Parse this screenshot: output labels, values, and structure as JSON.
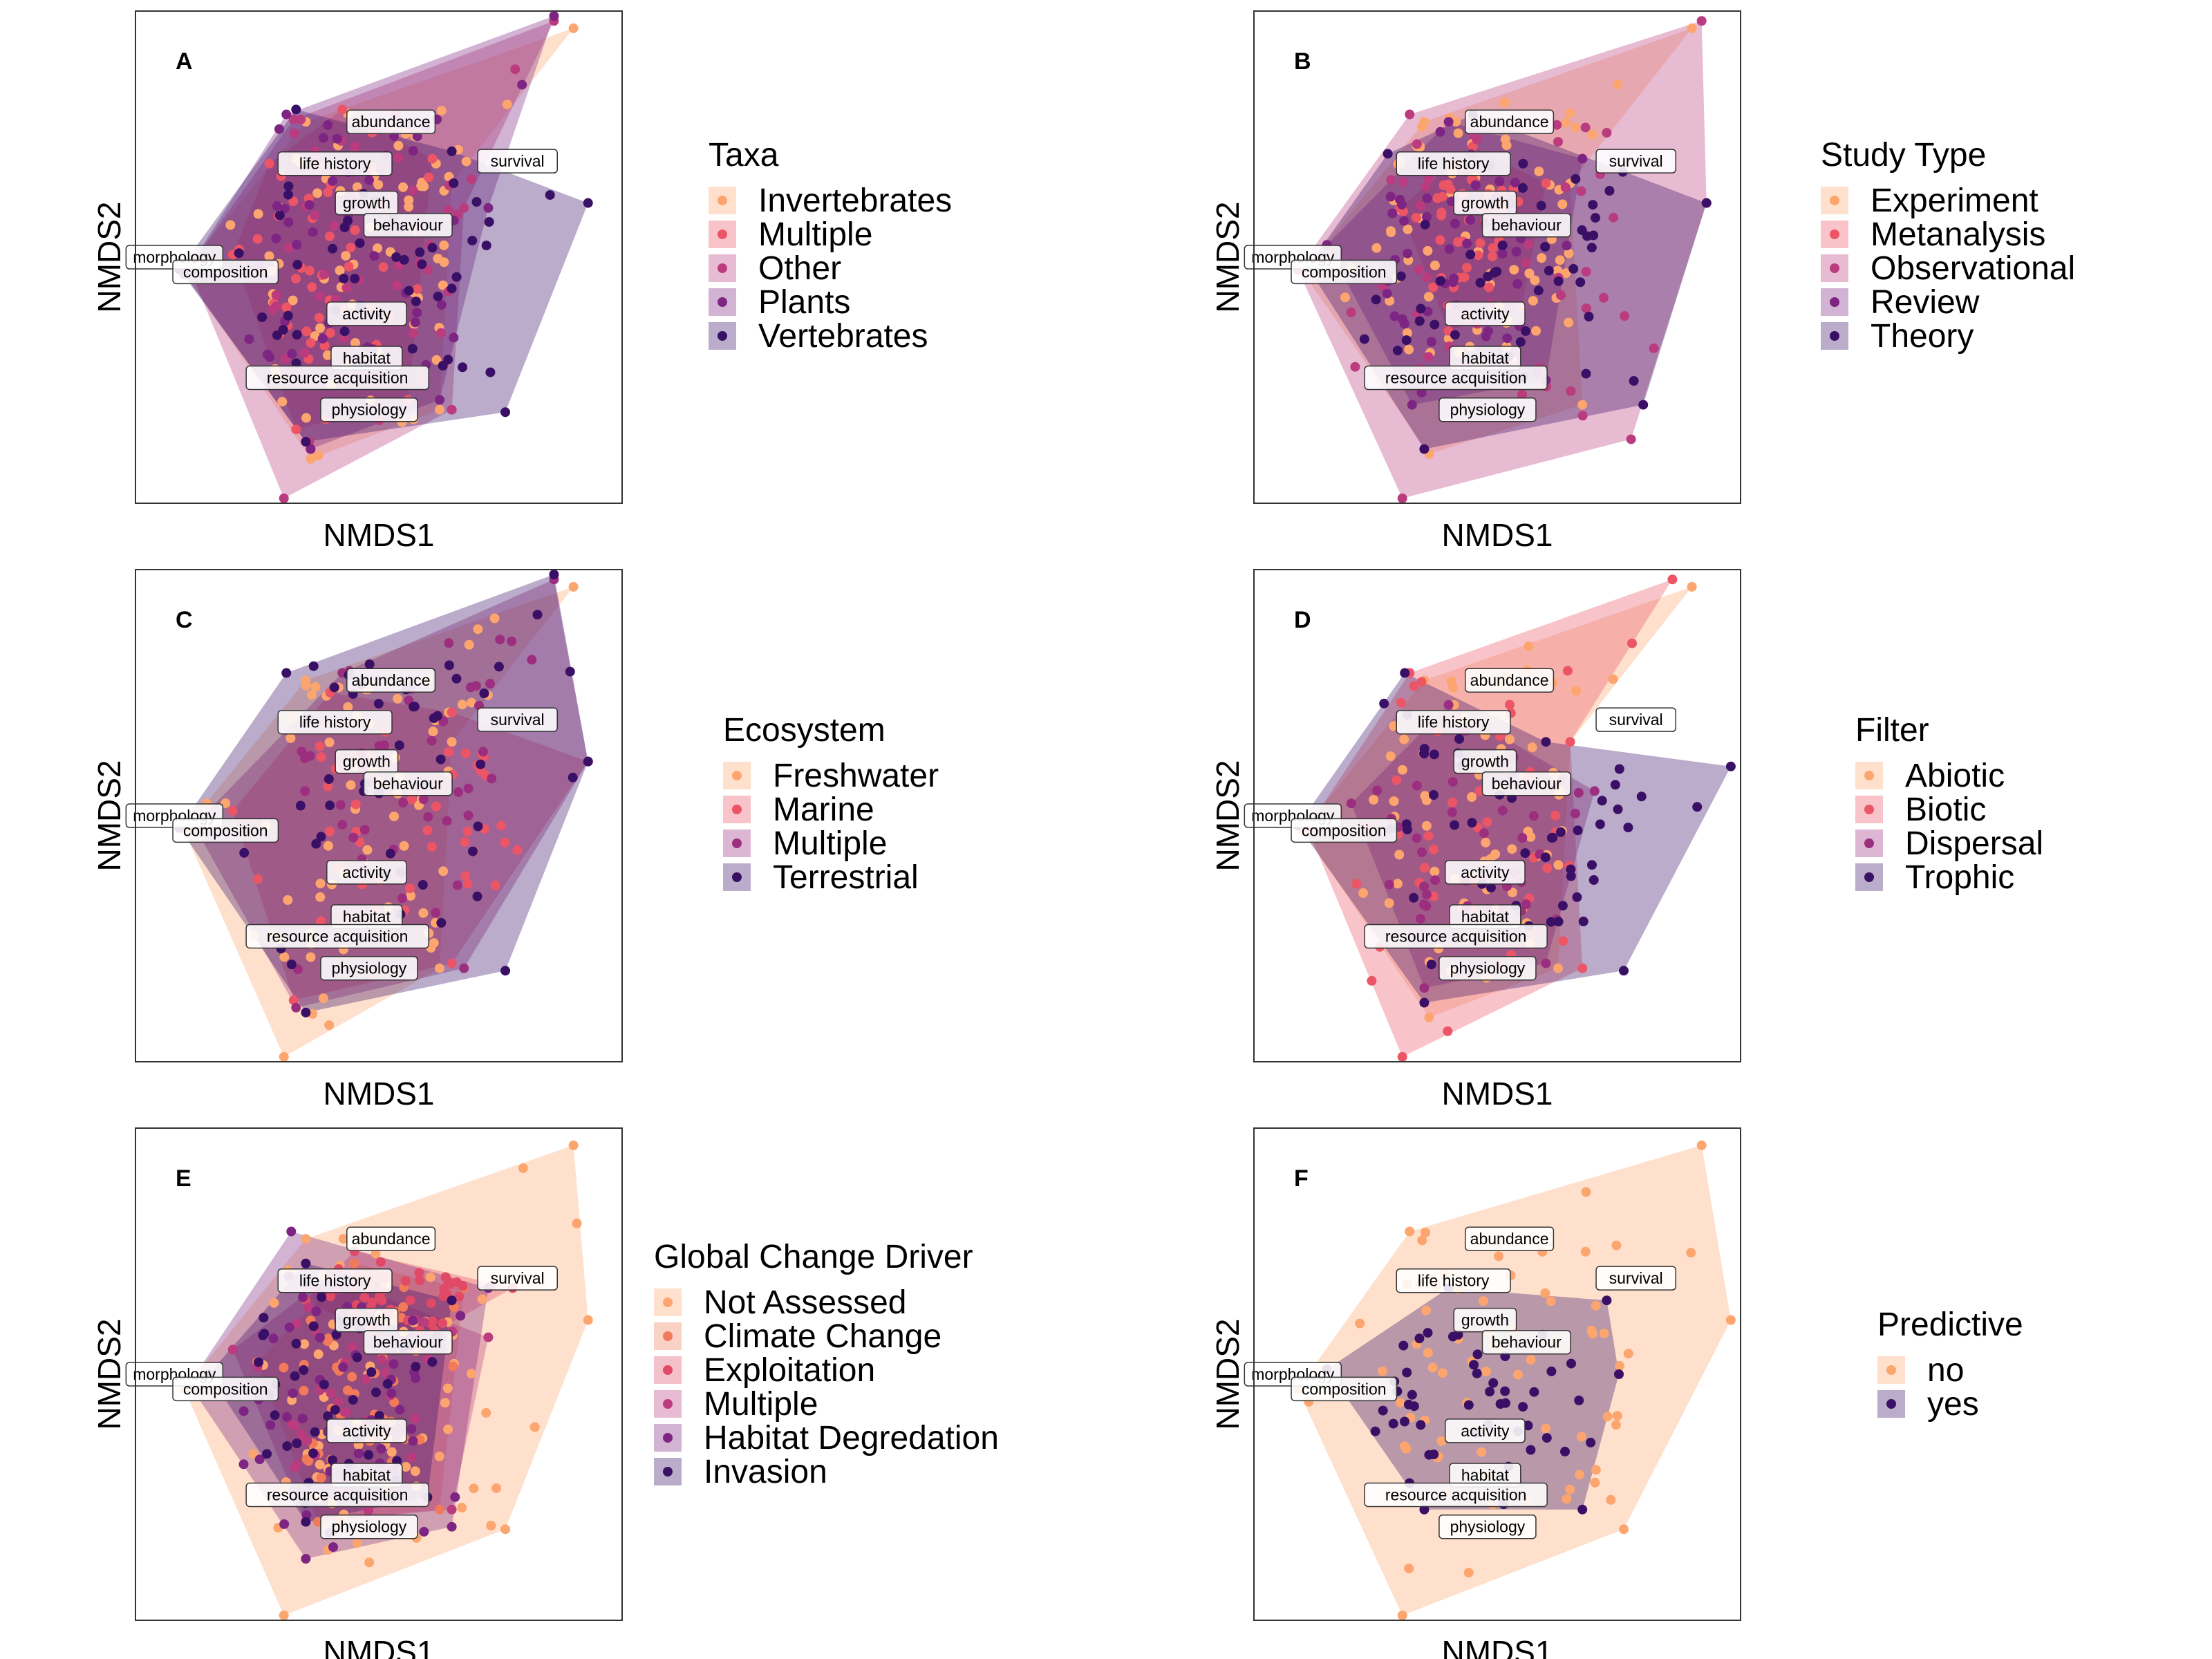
{
  "figure": {
    "x_axis_label": "NMDS1",
    "y_axis_label": "NMDS2",
    "vector_labels": [
      "abundance",
      "life history",
      "survival",
      "growth",
      "behaviour",
      "morphology",
      "composition",
      "activity",
      "habitat",
      "resource acquisition",
      "physiology"
    ]
  },
  "chart_data": [
    {
      "panel": "A",
      "type": "scatter",
      "xlabel": "NMDS1",
      "ylabel": "NMDS2",
      "xlim": [
        -1.0,
        1.0
      ],
      "ylim": [
        -1.0,
        1.0
      ],
      "grid": false,
      "legend_placement": "right",
      "legend_title": "Taxa",
      "groups": [
        {
          "name": "Invertebrates",
          "color": "#FCA56E",
          "hull": [
            [
              -0.8,
              -0.06
            ],
            [
              -0.28,
              -0.82
            ],
            [
              0.25,
              -0.62
            ],
            [
              0.3,
              0.3
            ],
            [
              0.8,
              0.93
            ],
            [
              -0.3,
              0.55
            ]
          ]
        },
        {
          "name": "Multiple",
          "color": "#EC5566",
          "hull": [
            [
              -0.6,
              0.01
            ],
            [
              -0.34,
              -0.7
            ],
            [
              0.12,
              -0.58
            ],
            [
              0.22,
              0.4
            ],
            [
              -0.15,
              0.6
            ],
            [
              -0.45,
              0.38
            ]
          ]
        },
        {
          "name": "Other",
          "color": "#BA3B7E",
          "hull": [
            [
              -0.78,
              -0.04
            ],
            [
              -0.39,
              -0.98
            ],
            [
              0.3,
              -0.62
            ],
            [
              0.35,
              0.2
            ],
            [
              0.72,
              0.96
            ],
            [
              -0.35,
              0.56
            ]
          ]
        },
        {
          "name": "Plants",
          "color": "#7E2482",
          "hull": [
            [
              -0.8,
              -0.07
            ],
            [
              -0.28,
              -0.78
            ],
            [
              0.25,
              -0.58
            ],
            [
              0.45,
              0.2
            ],
            [
              0.72,
              0.98
            ],
            [
              -0.38,
              0.58
            ]
          ]
        },
        {
          "name": "Vertebrates",
          "color": "#3A1066",
          "hull": [
            [
              -0.82,
              -0.05
            ],
            [
              -0.3,
              -0.75
            ],
            [
              0.52,
              -0.63
            ],
            [
              0.86,
              0.22
            ],
            [
              0.3,
              0.43
            ],
            [
              -0.34,
              0.6
            ]
          ]
        }
      ]
    },
    {
      "panel": "B",
      "type": "scatter",
      "xlabel": "NMDS1",
      "ylabel": "NMDS2",
      "xlim": [
        -1.0,
        1.0
      ],
      "ylim": [
        -1.0,
        1.0
      ],
      "grid": false,
      "legend_placement": "right",
      "legend_title": "Study Type",
      "groups": [
        {
          "name": "Experiment",
          "color": "#FCA56E",
          "hull": [
            [
              -0.8,
              -0.06
            ],
            [
              -0.28,
              -0.8
            ],
            [
              0.35,
              -0.6
            ],
            [
              0.3,
              0.3
            ],
            [
              0.8,
              0.93
            ],
            [
              -0.3,
              0.55
            ]
          ]
        },
        {
          "name": "Metanalysis",
          "color": "#EC5566",
          "hull": [
            [
              -0.4,
              0.2
            ],
            [
              -0.2,
              -0.3
            ],
            [
              0.1,
              -0.2
            ],
            [
              0.2,
              0.3
            ],
            [
              -0.1,
              0.45
            ]
          ]
        },
        {
          "name": "Observational",
          "color": "#BA3B7E",
          "hull": [
            [
              -0.82,
              -0.05
            ],
            [
              -0.39,
              -0.98
            ],
            [
              0.55,
              -0.74
            ],
            [
              0.86,
              0.22
            ],
            [
              0.84,
              0.96
            ],
            [
              -0.36,
              0.58
            ]
          ]
        },
        {
          "name": "Review",
          "color": "#7E2482",
          "hull": [
            [
              -0.7,
              0.05
            ],
            [
              -0.35,
              -0.6
            ],
            [
              0.2,
              -0.5
            ],
            [
              0.35,
              0.4
            ],
            [
              -0.2,
              0.55
            ]
          ]
        },
        {
          "name": "Theory",
          "color": "#3A1066",
          "hull": [
            [
              -0.78,
              -0.04
            ],
            [
              -0.3,
              -0.78
            ],
            [
              0.6,
              -0.6
            ],
            [
              0.86,
              0.22
            ],
            [
              -0.1,
              0.58
            ],
            [
              -0.45,
              0.42
            ]
          ]
        }
      ]
    },
    {
      "panel": "C",
      "type": "scatter",
      "xlabel": "NMDS1",
      "ylabel": "NMDS2",
      "xlim": [
        -1.0,
        1.0
      ],
      "ylim": [
        -1.0,
        1.0
      ],
      "grid": false,
      "legend_placement": "right",
      "legend_title": "Ecosystem",
      "groups": [
        {
          "name": "Freshwater",
          "color": "#FCA56E",
          "hull": [
            [
              -0.8,
              -0.06
            ],
            [
              -0.39,
              -0.98
            ],
            [
              0.25,
              -0.62
            ],
            [
              0.3,
              0.3
            ],
            [
              0.8,
              0.93
            ],
            [
              -0.3,
              0.55
            ]
          ]
        },
        {
          "name": "Marine",
          "color": "#EC5566",
          "hull": [
            [
              -0.6,
              0.02
            ],
            [
              -0.35,
              -0.75
            ],
            [
              0.3,
              -0.6
            ],
            [
              0.86,
              0.22
            ],
            [
              0.3,
              0.42
            ],
            [
              -0.2,
              0.5
            ]
          ]
        },
        {
          "name": "Multiple",
          "color": "#9C2E7F",
          "hull": [
            [
              -0.76,
              -0.04
            ],
            [
              -0.34,
              -0.78
            ],
            [
              0.35,
              -0.62
            ],
            [
              0.86,
              0.22
            ],
            [
              0.72,
              0.96
            ],
            [
              -0.15,
              0.58
            ]
          ]
        },
        {
          "name": "Terrestrial",
          "color": "#3A1066",
          "hull": [
            [
              -0.82,
              -0.05
            ],
            [
              -0.3,
              -0.8
            ],
            [
              0.52,
              -0.63
            ],
            [
              0.86,
              0.22
            ],
            [
              0.72,
              0.98
            ],
            [
              -0.38,
              0.58
            ]
          ]
        }
      ]
    },
    {
      "panel": "D",
      "type": "scatter",
      "xlabel": "NMDS1",
      "ylabel": "NMDS2",
      "xlim": [
        -1.0,
        1.0
      ],
      "ylim": [
        -1.0,
        1.0
      ],
      "grid": false,
      "legend_placement": "right",
      "legend_title": "Filter",
      "groups": [
        {
          "name": "Abiotic",
          "color": "#FCA56E",
          "hull": [
            [
              -0.8,
              -0.06
            ],
            [
              -0.28,
              -0.82
            ],
            [
              0.25,
              -0.62
            ],
            [
              0.3,
              0.3
            ],
            [
              0.8,
              0.93
            ],
            [
              -0.3,
              0.55
            ]
          ]
        },
        {
          "name": "Biotic",
          "color": "#EC5566",
          "hull": [
            [
              -0.78,
              -0.05
            ],
            [
              -0.39,
              -0.98
            ],
            [
              0.35,
              -0.62
            ],
            [
              0.3,
              0.3
            ],
            [
              0.72,
              0.96
            ],
            [
              -0.36,
              0.58
            ]
          ]
        },
        {
          "name": "Dispersal",
          "color": "#9C2E7F",
          "hull": [
            [
              -0.6,
              0.05
            ],
            [
              -0.3,
              -0.7
            ],
            [
              0.2,
              -0.6
            ],
            [
              0.4,
              0.1
            ],
            [
              -0.2,
              0.45
            ]
          ]
        },
        {
          "name": "Trophic",
          "color": "#3A1066",
          "hull": [
            [
              -0.82,
              -0.04
            ],
            [
              -0.3,
              -0.76
            ],
            [
              0.52,
              -0.63
            ],
            [
              0.96,
              0.2
            ],
            [
              0.2,
              0.3
            ],
            [
              -0.38,
              0.58
            ]
          ]
        }
      ]
    },
    {
      "panel": "E",
      "type": "scatter",
      "xlabel": "NMDS1",
      "ylabel": "NMDS2",
      "xlim": [
        -1.0,
        1.0
      ],
      "ylim": [
        -1.0,
        1.0
      ],
      "grid": false,
      "legend_placement": "right",
      "legend_title": "Global Change Driver",
      "groups": [
        {
          "name": "Not Assessed",
          "color": "#FCA56E",
          "hull": [
            [
              -0.8,
              -0.06
            ],
            [
              -0.39,
              -0.98
            ],
            [
              0.52,
              -0.63
            ],
            [
              0.86,
              0.22
            ],
            [
              0.8,
              0.93
            ],
            [
              -0.3,
              0.55
            ]
          ]
        },
        {
          "name": "Climate Change",
          "color": "#F07A5A",
          "hull": [
            [
              -0.5,
              0.05
            ],
            [
              -0.25,
              -0.6
            ],
            [
              0.25,
              -0.55
            ],
            [
              0.35,
              0.35
            ],
            [
              -0.1,
              0.45
            ]
          ]
        },
        {
          "name": "Exploitation",
          "color": "#E04A66",
          "hull": [
            [
              -0.3,
              0.3
            ],
            [
              0.1,
              0.1
            ],
            [
              0.55,
              0.35
            ],
            [
              -0.1,
              0.5
            ]
          ]
        },
        {
          "name": "Multiple",
          "color": "#BA3B7E",
          "hull": [
            [
              -0.6,
              0.1
            ],
            [
              -0.3,
              -0.6
            ],
            [
              0.3,
              -0.55
            ],
            [
              0.45,
              0.15
            ],
            [
              -0.2,
              0.4
            ]
          ]
        },
        {
          "name": "Habitat Degredation",
          "color": "#7E2482",
          "hull": [
            [
              -0.78,
              -0.04
            ],
            [
              -0.3,
              -0.75
            ],
            [
              0.3,
              -0.62
            ],
            [
              0.45,
              0.35
            ],
            [
              -0.36,
              0.58
            ]
          ]
        },
        {
          "name": "Invasion",
          "color": "#3A1066",
          "hull": [
            [
              -0.7,
              0.0
            ],
            [
              -0.3,
              -0.6
            ],
            [
              0.2,
              -0.5
            ],
            [
              0.3,
              0.3
            ],
            [
              -0.3,
              0.45
            ]
          ]
        }
      ]
    },
    {
      "panel": "F",
      "type": "scatter",
      "xlabel": "NMDS1",
      "ylabel": "NMDS2",
      "xlim": [
        -1.0,
        1.0
      ],
      "ylim": [
        -1.0,
        1.0
      ],
      "grid": false,
      "legend_placement": "right",
      "legend_title": "Predictive",
      "groups": [
        {
          "name": "no",
          "color": "#FCA56E",
          "hull": [
            [
              -0.82,
              -0.06
            ],
            [
              -0.39,
              -0.98
            ],
            [
              0.52,
              -0.63
            ],
            [
              0.96,
              0.22
            ],
            [
              0.84,
              0.93
            ],
            [
              -0.36,
              0.58
            ]
          ]
        },
        {
          "name": "yes",
          "color": "#3A1066",
          "hull": [
            [
              -0.7,
              0.02
            ],
            [
              -0.3,
              -0.55
            ],
            [
              0.35,
              -0.55
            ],
            [
              0.5,
              0.0
            ],
            [
              0.45,
              0.3
            ],
            [
              -0.2,
              0.35
            ]
          ]
        }
      ]
    }
  ]
}
